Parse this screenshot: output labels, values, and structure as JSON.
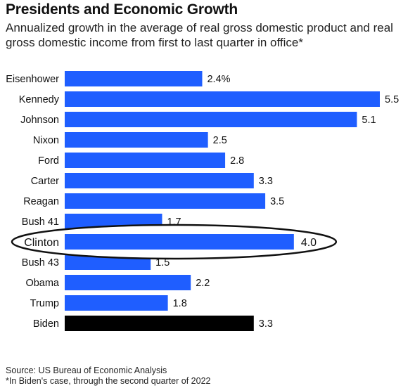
{
  "title": "Presidents and Economic Growth",
  "subtitle": "Annualized growth in the average of real gross domestic product and real gross domestic income from first to last quarter in office*",
  "source": "Source: US Bureau of Economic Analysis",
  "footnote": "*In Biden's case, through the second quarter of 2022",
  "colors": {
    "bar": "#1f5eff",
    "highlight_bar": "#000000",
    "annotation_ring": "#111111"
  },
  "chart_data": {
    "type": "bar",
    "orientation": "horizontal",
    "categories": [
      "Eisenhower",
      "Kennedy",
      "Johnson",
      "Nixon",
      "Ford",
      "Carter",
      "Reagan",
      "Bush 41",
      "Clinton",
      "Bush 43",
      "Obama",
      "Trump",
      "Biden"
    ],
    "values": [
      2.4,
      5.5,
      5.1,
      2.5,
      2.8,
      3.3,
      3.5,
      1.7,
      4.0,
      1.5,
      2.2,
      1.8,
      3.3
    ],
    "value_labels": [
      "2.4%",
      "5.5",
      "5.1",
      "2.5",
      "2.8",
      "3.3",
      "3.5",
      "1.7",
      "4.0",
      "1.5",
      "2.2",
      "1.8",
      "3.3"
    ],
    "highlighted": "Biden",
    "circled": "Clinton",
    "xlim": [
      0,
      5.5
    ],
    "grid": false,
    "legend": "none"
  }
}
